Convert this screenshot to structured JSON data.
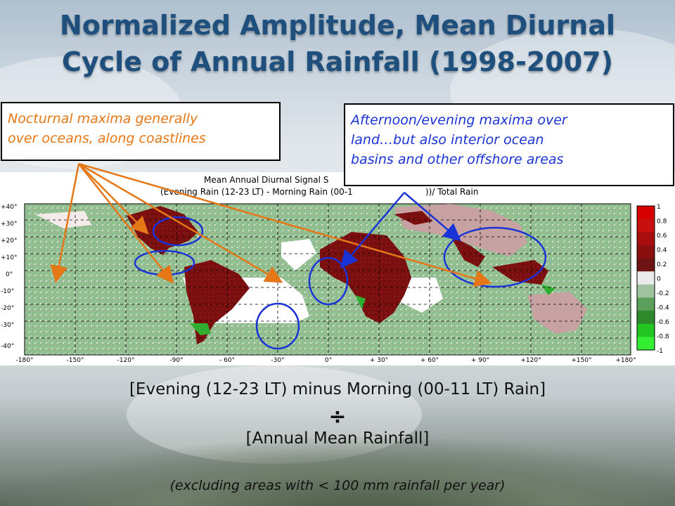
{
  "slide": {
    "title_line1": "Normalized Amplitude, Mean Diurnal",
    "title_line2": "Cycle of Annual Rainfall (1998-2007)"
  },
  "callouts": {
    "nocturnal_line1": "Nocturnal maxima generally",
    "nocturnal_line2": "over oceans, along coastlines",
    "afternoon_line1": "Afternoon/evening maxima over",
    "afternoon_line2": "land…but also interior ocean",
    "afternoon_line3": "basins and other offshore areas",
    "nocturnal_color": "#e57716",
    "afternoon_color": "#1a33d6"
  },
  "map": {
    "header_line1": "Mean Annual Diurnal Signal S",
    "header_line2a": "(Evening Rain (12-23 LT) - Morning Rain (00-1",
    "header_line2b": "))/ Total Rain",
    "lat_labels": [
      "+40°",
      "+30°",
      "+20°",
      "+10°",
      "0°",
      "-10°",
      "-20°",
      "-30°",
      "-40°"
    ],
    "lon_labels": [
      "-180°",
      "-150°",
      "-120°",
      "-90°",
      "- 60°",
      "-30°",
      "0°",
      "+ 30°",
      "+ 60°",
      "+ 90°",
      "+120°",
      "+150°",
      "+180°"
    ],
    "colorbar_labels": [
      "1",
      "0.8",
      "0.6",
      "0.4",
      "0.2",
      "0",
      "-0.2",
      "-0.4",
      "-0.6",
      "-0.8",
      "-1"
    ],
    "colorbar_colors": [
      "#d90000",
      "#c81010",
      "#a80e0e",
      "#8a1010",
      "#6e1414",
      "#eaeaea",
      "#9fc39f",
      "#5aa05a",
      "#2c8a2c",
      "#22c522",
      "#33ee33"
    ]
  },
  "formula": {
    "numerator": "[Evening (12-23 LT) minus Morning (00-11 LT) Rain]",
    "divide_symbol": "÷",
    "denominator": "[Annual Mean Rainfall]",
    "note": "(excluding areas with < 100 mm rainfall per year)"
  }
}
